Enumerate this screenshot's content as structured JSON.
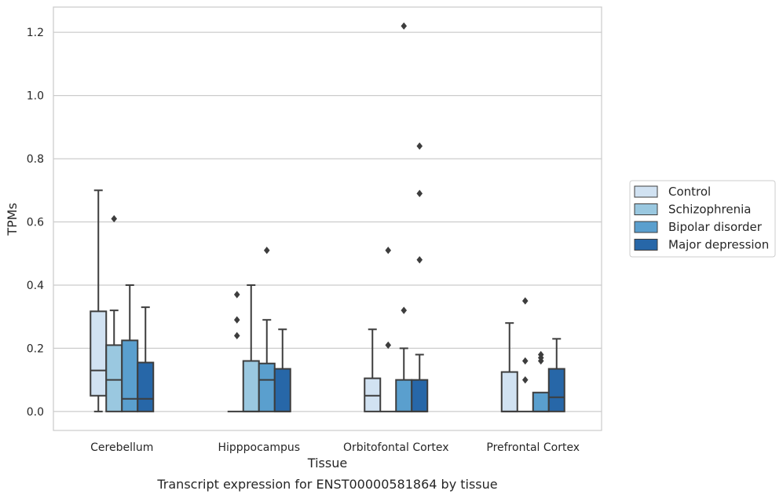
{
  "chart_data": {
    "type": "box",
    "title": "",
    "caption": "Transcript expression for ENST00000581864 by tissue",
    "xlabel": "Tissue",
    "ylabel": "TPMs",
    "ylim": [
      -0.06,
      1.28
    ],
    "yticks": [
      0.0,
      0.2,
      0.4,
      0.6,
      0.8,
      1.0,
      1.2
    ],
    "ytick_labels": [
      "0.0",
      "0.2",
      "0.4",
      "0.6",
      "0.8",
      "1.0",
      "1.2"
    ],
    "grid": "horizontal",
    "legend_position": "right",
    "categories": [
      "Cerebellum",
      "Hipppocampus",
      "Orbitofontal Cortex",
      "Prefrontal Cortex"
    ],
    "series": [
      {
        "name": "Control",
        "color": "#d1e2f2",
        "boxes": [
          {
            "whislo": 0.0,
            "q1": 0.05,
            "med": 0.13,
            "q3": 0.317,
            "whishi": 0.7,
            "fliers": []
          },
          {
            "whislo": 0.0,
            "q1": 0.0,
            "med": 0.0,
            "q3": 0.0,
            "whishi": 0.0,
            "fliers": []
          },
          {
            "whislo": 0.0,
            "q1": 0.0,
            "med": 0.05,
            "q3": 0.105,
            "whishi": 0.26,
            "fliers": []
          },
          {
            "whislo": 0.0,
            "q1": 0.0,
            "med": 0.0,
            "q3": 0.125,
            "whishi": 0.28,
            "fliers": []
          }
        ]
      },
      {
        "name": "Schizophrenia",
        "color": "#9ac8e0",
        "boxes": [
          {
            "whislo": 0.0,
            "q1": 0.0,
            "med": 0.1,
            "q3": 0.21,
            "whishi": 0.32,
            "fliers": [
              0.61
            ]
          },
          {
            "whislo": 0.0,
            "q1": 0.0,
            "med": 0.0,
            "q3": 0.16,
            "whishi": 0.4,
            "fliers": []
          },
          {
            "whislo": 0.0,
            "q1": 0.0,
            "med": 0.0,
            "q3": 0.0,
            "whishi": 0.0,
            "fliers": [
              0.21,
              0.51
            ]
          },
          {
            "whislo": 0.0,
            "q1": 0.0,
            "med": 0.0,
            "q3": 0.0,
            "whishi": 0.0,
            "fliers": [
              0.1,
              0.16,
              0.35
            ]
          }
        ]
      },
      {
        "name": "Bipolar disorder",
        "color": "#5a9fce",
        "boxes": [
          {
            "whislo": 0.0,
            "q1": 0.0,
            "med": 0.04,
            "q3": 0.225,
            "whishi": 0.4,
            "fliers": []
          },
          {
            "whislo": 0.0,
            "q1": 0.0,
            "med": 0.1,
            "q3": 0.152,
            "whishi": 0.29,
            "fliers": [
              0.51
            ]
          },
          {
            "whislo": 0.0,
            "q1": 0.0,
            "med": 0.0,
            "q3": 0.1,
            "whishi": 0.2,
            "fliers": [
              0.32,
              1.22
            ]
          },
          {
            "whislo": 0.0,
            "q1": 0.0,
            "med": 0.0,
            "q3": 0.06,
            "whishi": 0.06,
            "fliers": [
              0.16,
              0.17,
              0.18
            ]
          }
        ]
      },
      {
        "name": "Major depression",
        "color": "#2767a8",
        "boxes": [
          {
            "whislo": 0.0,
            "q1": 0.0,
            "med": 0.04,
            "q3": 0.155,
            "whishi": 0.33,
            "fliers": []
          },
          {
            "whislo": 0.0,
            "q1": 0.0,
            "med": 0.0,
            "q3": 0.135,
            "whishi": 0.26,
            "fliers": []
          },
          {
            "whislo": 0.0,
            "q1": 0.0,
            "med": 0.0,
            "q3": 0.1,
            "whishi": 0.18,
            "fliers": [
              0.48,
              0.69,
              0.84
            ]
          },
          {
            "whislo": 0.0,
            "q1": 0.0,
            "med": 0.045,
            "q3": 0.135,
            "whishi": 0.23,
            "fliers": []
          }
        ]
      }
    ]
  },
  "hidden_outliers": {
    "Cerebellum": {
      "Control": [
        0.37,
        0.29,
        0.24
      ]
    }
  }
}
